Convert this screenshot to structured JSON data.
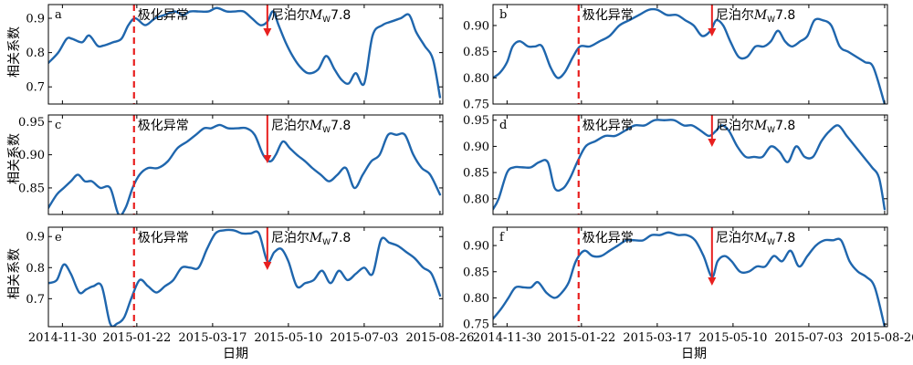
{
  "labels": {
    "ylabel": "相关系数",
    "xlabel": "日期",
    "polarization": "极化异常",
    "nepal_prefix": "尼泊尔",
    "magnitude_symbol": "M",
    "magnitude_sub": "W",
    "magnitude_value": "7.8"
  },
  "chart_data": [
    {
      "type": "line",
      "panel_label": "a",
      "ylim": [
        0.65,
        0.94
      ],
      "yticks": [
        0.7,
        0.8,
        0.9
      ],
      "xlim": [
        "2014-11-20",
        "2015-08-28"
      ],
      "x_ticks": [
        "2014-11-30",
        "2015-01-22",
        "2015-03-17",
        "2015-05-10",
        "2015-07-03",
        "2015-08-26"
      ],
      "anomaly_date": "2015-01-20",
      "earthquake_date": "2015-04-25",
      "series": [
        {
          "color": "#1f66ad",
          "x": [
            "2014-11-20",
            "2014-11-27",
            "2014-12-03",
            "2014-12-07",
            "2014-12-14",
            "2014-12-19",
            "2014-12-25",
            "2014-12-29",
            "2015-01-05",
            "2015-01-11",
            "2015-01-16",
            "2015-01-21",
            "2015-01-28",
            "2015-02-04",
            "2015-02-11",
            "2015-02-18",
            "2015-02-24",
            "2015-03-01",
            "2015-03-07",
            "2015-03-14",
            "2015-03-20",
            "2015-03-27",
            "2015-04-02",
            "2015-04-08",
            "2015-04-14",
            "2015-04-20",
            "2015-04-25",
            "2015-04-29",
            "2015-05-03",
            "2015-05-08",
            "2015-05-13",
            "2015-05-18",
            "2015-05-24",
            "2015-05-31",
            "2015-06-06",
            "2015-06-12",
            "2015-06-17",
            "2015-06-22",
            "2015-06-27",
            "2015-07-03",
            "2015-07-09",
            "2015-07-16",
            "2015-07-22",
            "2015-07-29",
            "2015-08-04",
            "2015-08-09",
            "2015-08-15",
            "2015-08-21",
            "2015-08-26"
          ],
          "y": [
            0.77,
            0.8,
            0.84,
            0.84,
            0.83,
            0.85,
            0.82,
            0.82,
            0.83,
            0.84,
            0.88,
            0.9,
            0.88,
            0.9,
            0.91,
            0.92,
            0.91,
            0.92,
            0.92,
            0.92,
            0.93,
            0.92,
            0.92,
            0.92,
            0.9,
            0.88,
            0.89,
            0.92,
            0.88,
            0.83,
            0.79,
            0.76,
            0.74,
            0.75,
            0.79,
            0.75,
            0.72,
            0.71,
            0.74,
            0.71,
            0.85,
            0.88,
            0.89,
            0.9,
            0.91,
            0.86,
            0.82,
            0.78,
            0.67
          ]
        }
      ]
    },
    {
      "type": "line",
      "panel_label": "b",
      "ylim": [
        0.75,
        0.94
      ],
      "yticks": [
        0.75,
        0.8,
        0.85,
        0.9
      ],
      "xlim": [
        "2014-11-20",
        "2015-08-28"
      ],
      "x_ticks": [
        "2014-11-30",
        "2015-01-22",
        "2015-03-17",
        "2015-05-10",
        "2015-07-03",
        "2015-08-26"
      ],
      "anomaly_date": "2015-01-20",
      "earthquake_date": "2015-04-25",
      "series": [
        {
          "color": "#1f66ad",
          "x": [
            "2014-11-20",
            "2014-11-25",
            "2014-11-30",
            "2014-12-04",
            "2014-12-09",
            "2014-12-15",
            "2014-12-20",
            "2014-12-25",
            "2014-12-31",
            "2015-01-05",
            "2015-01-10",
            "2015-01-16",
            "2015-01-21",
            "2015-01-28",
            "2015-02-04",
            "2015-02-11",
            "2015-02-18",
            "2015-02-25",
            "2015-03-04",
            "2015-03-11",
            "2015-03-17",
            "2015-03-24",
            "2015-03-31",
            "2015-04-06",
            "2015-04-12",
            "2015-04-18",
            "2015-04-24",
            "2015-04-28",
            "2015-05-03",
            "2015-05-08",
            "2015-05-14",
            "2015-05-20",
            "2015-05-26",
            "2015-06-01",
            "2015-06-06",
            "2015-06-11",
            "2015-06-16",
            "2015-06-21",
            "2015-06-27",
            "2015-07-02",
            "2015-07-07",
            "2015-07-13",
            "2015-07-19",
            "2015-07-25",
            "2015-07-31",
            "2015-08-06",
            "2015-08-12",
            "2015-08-18",
            "2015-08-26"
          ],
          "y": [
            0.8,
            0.81,
            0.83,
            0.86,
            0.87,
            0.86,
            0.86,
            0.86,
            0.82,
            0.8,
            0.81,
            0.84,
            0.86,
            0.86,
            0.87,
            0.88,
            0.9,
            0.91,
            0.92,
            0.93,
            0.93,
            0.92,
            0.92,
            0.91,
            0.9,
            0.88,
            0.89,
            0.91,
            0.9,
            0.87,
            0.84,
            0.84,
            0.86,
            0.86,
            0.87,
            0.89,
            0.87,
            0.86,
            0.87,
            0.88,
            0.91,
            0.91,
            0.9,
            0.86,
            0.85,
            0.84,
            0.83,
            0.82,
            0.75
          ]
        }
      ]
    },
    {
      "type": "line",
      "panel_label": "c",
      "ylim": [
        0.81,
        0.96
      ],
      "yticks": [
        0.85,
        0.9,
        0.95
      ],
      "xlim": [
        "2014-11-20",
        "2015-08-28"
      ],
      "x_ticks": [
        "2014-11-30",
        "2015-01-22",
        "2015-03-17",
        "2015-05-10",
        "2015-07-03",
        "2015-08-26"
      ],
      "anomaly_date": "2015-01-20",
      "earthquake_date": "2015-04-25",
      "series": [
        {
          "color": "#1f66ad",
          "x": [
            "2014-11-20",
            "2014-11-26",
            "2014-12-01",
            "2014-12-06",
            "2014-12-11",
            "2014-12-16",
            "2014-12-21",
            "2014-12-27",
            "2015-01-03",
            "2015-01-09",
            "2015-01-14",
            "2015-01-19",
            "2015-01-24",
            "2015-01-30",
            "2015-02-06",
            "2015-02-13",
            "2015-02-20",
            "2015-02-27",
            "2015-03-05",
            "2015-03-11",
            "2015-03-16",
            "2015-03-22",
            "2015-03-28",
            "2015-04-04",
            "2015-04-10",
            "2015-04-16",
            "2015-04-22",
            "2015-04-27",
            "2015-05-01",
            "2015-05-06",
            "2015-05-11",
            "2015-05-16",
            "2015-05-22",
            "2015-05-27",
            "2015-06-02",
            "2015-06-08",
            "2015-06-14",
            "2015-06-20",
            "2015-06-26",
            "2015-07-02",
            "2015-07-08",
            "2015-07-14",
            "2015-07-20",
            "2015-07-26",
            "2015-08-01",
            "2015-08-07",
            "2015-08-13",
            "2015-08-19",
            "2015-08-26"
          ],
          "y": [
            0.82,
            0.84,
            0.85,
            0.86,
            0.87,
            0.86,
            0.86,
            0.85,
            0.85,
            0.81,
            0.82,
            0.85,
            0.87,
            0.88,
            0.88,
            0.89,
            0.91,
            0.92,
            0.93,
            0.94,
            0.94,
            0.945,
            0.94,
            0.94,
            0.94,
            0.93,
            0.9,
            0.89,
            0.9,
            0.92,
            0.91,
            0.9,
            0.89,
            0.88,
            0.87,
            0.86,
            0.87,
            0.88,
            0.85,
            0.87,
            0.89,
            0.9,
            0.93,
            0.93,
            0.93,
            0.9,
            0.88,
            0.87,
            0.84
          ]
        }
      ]
    },
    {
      "type": "line",
      "panel_label": "d",
      "ylim": [
        0.77,
        0.96
      ],
      "yticks": [
        0.8,
        0.85,
        0.9,
        0.95
      ],
      "xlim": [
        "2014-11-20",
        "2015-08-28"
      ],
      "x_ticks": [
        "2014-11-30",
        "2015-01-22",
        "2015-03-17",
        "2015-05-10",
        "2015-07-03",
        "2015-08-26"
      ],
      "anomaly_date": "2015-01-20",
      "earthquake_date": "2015-04-25",
      "series": [
        {
          "color": "#1f66ad",
          "x": [
            "2014-11-20",
            "2014-11-24",
            "2014-11-30",
            "2014-12-05",
            "2014-12-11",
            "2014-12-17",
            "2014-12-23",
            "2014-12-29",
            "2015-01-03",
            "2015-01-09",
            "2015-01-14",
            "2015-01-19",
            "2015-01-25",
            "2015-02-01",
            "2015-02-08",
            "2015-02-15",
            "2015-02-22",
            "2015-03-01",
            "2015-03-08",
            "2015-03-15",
            "2015-03-22",
            "2015-03-29",
            "2015-04-05",
            "2015-04-11",
            "2015-04-17",
            "2015-04-23",
            "2015-04-28",
            "2015-05-02",
            "2015-05-07",
            "2015-05-13",
            "2015-05-19",
            "2015-05-25",
            "2015-05-31",
            "2015-06-06",
            "2015-06-12",
            "2015-06-18",
            "2015-06-24",
            "2015-06-30",
            "2015-07-06",
            "2015-07-12",
            "2015-07-18",
            "2015-07-24",
            "2015-07-30",
            "2015-08-05",
            "2015-08-11",
            "2015-08-17",
            "2015-08-22",
            "2015-08-26"
          ],
          "y": [
            0.78,
            0.8,
            0.85,
            0.86,
            0.86,
            0.86,
            0.87,
            0.87,
            0.82,
            0.82,
            0.84,
            0.87,
            0.9,
            0.91,
            0.92,
            0.92,
            0.93,
            0.94,
            0.94,
            0.95,
            0.95,
            0.95,
            0.94,
            0.94,
            0.93,
            0.92,
            0.93,
            0.94,
            0.93,
            0.9,
            0.88,
            0.88,
            0.88,
            0.9,
            0.89,
            0.87,
            0.9,
            0.88,
            0.88,
            0.91,
            0.93,
            0.94,
            0.92,
            0.9,
            0.88,
            0.86,
            0.84,
            0.78
          ]
        }
      ]
    },
    {
      "type": "line",
      "panel_label": "e",
      "ylim": [
        0.61,
        0.93
      ],
      "yticks": [
        0.7,
        0.8,
        0.9
      ],
      "xlim": [
        "2014-11-20",
        "2015-08-28"
      ],
      "x_ticks": [
        "2014-11-30",
        "2015-01-22",
        "2015-03-17",
        "2015-05-10",
        "2015-07-03",
        "2015-08-26"
      ],
      "anomaly_date": "2015-01-20",
      "earthquake_date": "2015-04-25",
      "series": [
        {
          "color": "#1f66ad",
          "x": [
            "2014-11-20",
            "2014-11-26",
            "2014-12-01",
            "2014-12-06",
            "2014-12-12",
            "2014-12-17",
            "2014-12-22",
            "2014-12-28",
            "2015-01-03",
            "2015-01-08",
            "2015-01-13",
            "2015-01-18",
            "2015-01-24",
            "2015-01-30",
            "2015-02-05",
            "2015-02-11",
            "2015-02-17",
            "2015-02-23",
            "2015-03-01",
            "2015-03-07",
            "2015-03-13",
            "2015-03-19",
            "2015-03-25",
            "2015-04-01",
            "2015-04-07",
            "2015-04-13",
            "2015-04-19",
            "2015-04-25",
            "2015-04-30",
            "2015-05-05",
            "2015-05-10",
            "2015-05-16",
            "2015-05-22",
            "2015-05-28",
            "2015-06-03",
            "2015-06-09",
            "2015-06-15",
            "2015-06-21",
            "2015-06-27",
            "2015-07-03",
            "2015-07-09",
            "2015-07-15",
            "2015-07-21",
            "2015-07-27",
            "2015-08-02",
            "2015-08-08",
            "2015-08-14",
            "2015-08-20",
            "2015-08-26"
          ],
          "y": [
            0.75,
            0.76,
            0.81,
            0.78,
            0.72,
            0.73,
            0.74,
            0.74,
            0.62,
            0.62,
            0.64,
            0.7,
            0.76,
            0.74,
            0.72,
            0.74,
            0.76,
            0.8,
            0.8,
            0.8,
            0.86,
            0.91,
            0.92,
            0.92,
            0.91,
            0.91,
            0.91,
            0.82,
            0.85,
            0.86,
            0.82,
            0.74,
            0.75,
            0.76,
            0.79,
            0.75,
            0.79,
            0.76,
            0.78,
            0.8,
            0.78,
            0.89,
            0.88,
            0.87,
            0.85,
            0.83,
            0.8,
            0.78,
            0.71
          ]
        }
      ]
    },
    {
      "type": "line",
      "panel_label": "f",
      "ylim": [
        0.745,
        0.935
      ],
      "yticks": [
        0.75,
        0.8,
        0.85,
        0.9
      ],
      "xlim": [
        "2014-11-20",
        "2015-08-28"
      ],
      "x_ticks": [
        "2014-11-30",
        "2015-01-22",
        "2015-03-17",
        "2015-05-10",
        "2015-07-03",
        "2015-08-26"
      ],
      "anomaly_date": "2015-01-20",
      "earthquake_date": "2015-04-25",
      "series": [
        {
          "color": "#1f66ad",
          "x": [
            "2014-11-20",
            "2014-11-26",
            "2014-12-01",
            "2014-12-06",
            "2014-12-12",
            "2014-12-17",
            "2014-12-22",
            "2014-12-28",
            "2015-01-03",
            "2015-01-08",
            "2015-01-13",
            "2015-01-18",
            "2015-01-24",
            "2015-01-30",
            "2015-02-05",
            "2015-02-11",
            "2015-02-17",
            "2015-02-23",
            "2015-03-01",
            "2015-03-07",
            "2015-03-13",
            "2015-03-19",
            "2015-03-25",
            "2015-04-01",
            "2015-04-07",
            "2015-04-13",
            "2015-04-19",
            "2015-04-25",
            "2015-04-29",
            "2015-05-04",
            "2015-05-09",
            "2015-05-15",
            "2015-05-21",
            "2015-05-27",
            "2015-06-02",
            "2015-06-08",
            "2015-06-14",
            "2015-06-20",
            "2015-06-26",
            "2015-07-02",
            "2015-07-08",
            "2015-07-14",
            "2015-07-20",
            "2015-07-26",
            "2015-08-01",
            "2015-08-07",
            "2015-08-13",
            "2015-08-19",
            "2015-08-26"
          ],
          "y": [
            0.76,
            0.78,
            0.8,
            0.82,
            0.82,
            0.82,
            0.83,
            0.81,
            0.8,
            0.81,
            0.83,
            0.87,
            0.89,
            0.88,
            0.88,
            0.89,
            0.9,
            0.91,
            0.91,
            0.91,
            0.92,
            0.92,
            0.925,
            0.92,
            0.92,
            0.91,
            0.88,
            0.84,
            0.87,
            0.88,
            0.87,
            0.85,
            0.85,
            0.86,
            0.86,
            0.88,
            0.87,
            0.89,
            0.86,
            0.88,
            0.9,
            0.91,
            0.91,
            0.91,
            0.87,
            0.85,
            0.84,
            0.82,
            0.745
          ]
        }
      ]
    }
  ]
}
